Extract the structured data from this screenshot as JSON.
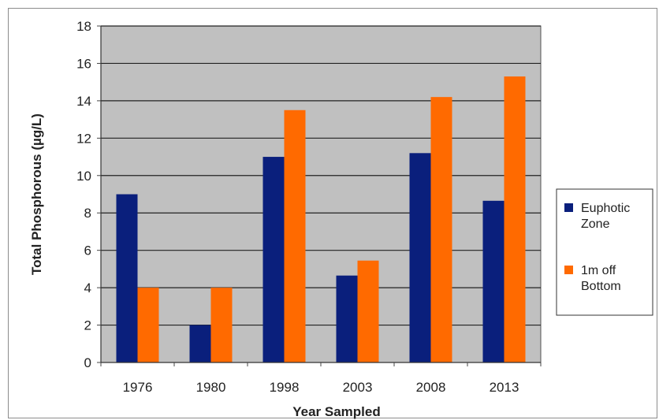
{
  "chart_data": {
    "type": "bar",
    "categories": [
      "1976",
      "1980",
      "1998",
      "2003",
      "2008",
      "2013"
    ],
    "series": [
      {
        "name": "Euphotic Zone",
        "color": "#0a1f7c",
        "values": [
          9.0,
          2.0,
          11.0,
          4.65,
          11.2,
          8.65
        ]
      },
      {
        "name": "1m off Bottom",
        "color": "#ff6a00",
        "values": [
          4.0,
          4.0,
          13.5,
          5.45,
          14.2,
          15.3
        ]
      }
    ],
    "xlabel": "Year Sampled",
    "ylabel": "Total Phosphorous (µg/L)",
    "ylim": [
      0,
      18
    ],
    "yticks": [
      0,
      2,
      4,
      6,
      8,
      10,
      12,
      14,
      16,
      18
    ],
    "grid": true,
    "plot_background": "#c0c0c0",
    "legend_position": "right",
    "legend_lines": [
      [
        "Euphotic",
        "Zone"
      ],
      [
        "1m  off",
        "Bottom"
      ]
    ]
  }
}
